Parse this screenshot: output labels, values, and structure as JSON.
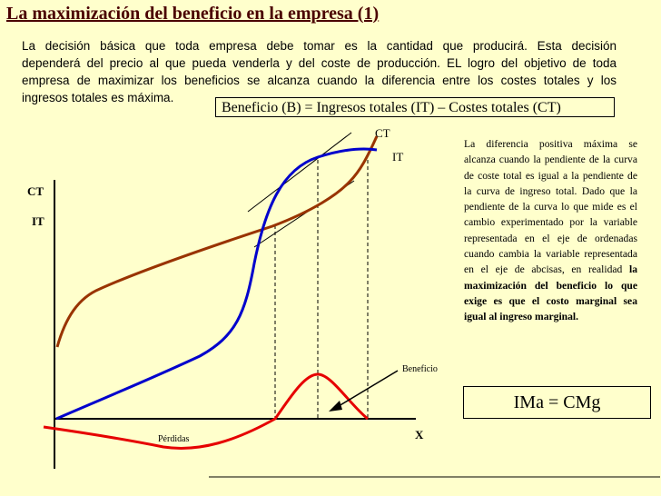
{
  "slide": {
    "title": "La maximización del beneficio en la empresa (1)",
    "intro_lines": [
      "La decisión básica que toda empresa debe tomar es la cantidad que producirá. Esta decisión",
      "dependerá del precio al que pueda venderla y del coste de producción. EL logro del objetivo de toda",
      "empresa de maximizar los beneficios se alcanza cuando la diferencia entre los costes totales y los",
      "ingresos totales es máxima."
    ],
    "formula": "Beneficio (B)  = Ingresos totales (IT) – Costes totales (CT)",
    "explanation_plain": "La diferencia positiva máxima se alcanza cuando la pendiente de la curva de coste total es igual a la pendiente de la curva de ingreso total. Dado que la pendiente de la curva lo que mide es el cambio experimentado por la variable representada en el eje de ordenadas cuando cambia la variable representada en el eje de abcisas, en realidad ",
    "explanation_bold": "la maximización del beneficio lo que exige es que el costo marginal sea igual al ingreso marginal.",
    "equation": "IMa = CMg"
  },
  "graph": {
    "y_axis_label_ct": "CT",
    "y_axis_label_it": "IT",
    "x_axis_label": "X",
    "curve_label_ct": "CT",
    "curve_label_it": "IT",
    "label_beneficio": "Beneficio",
    "label_perdidas": "Pérdidas",
    "colors": {
      "ct_curve": "#993300",
      "it_curve": "#0000cc",
      "benefit_curve": "#e60000",
      "axes": "#000000",
      "title": "#4a0000",
      "background": "#ffffcc"
    }
  }
}
